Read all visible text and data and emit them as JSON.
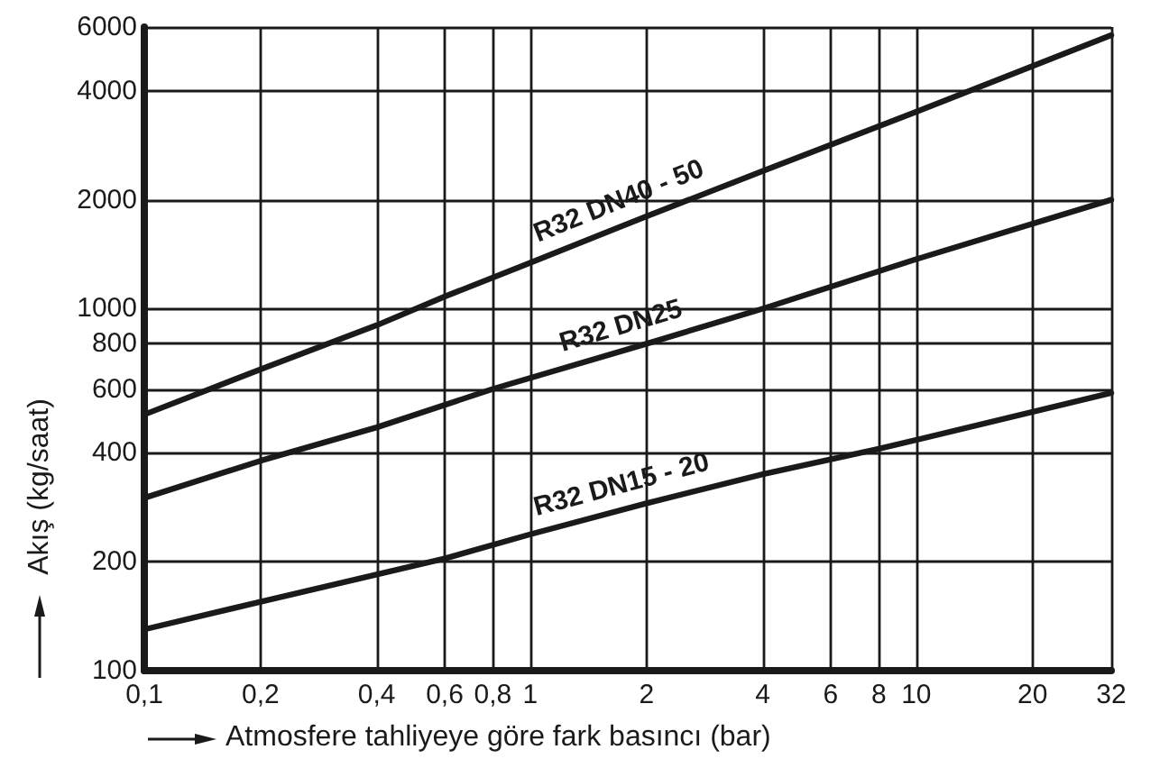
{
  "chart_data": {
    "type": "line",
    "xlabel": "Atmosfere tahliyeye göre fark basıncı (bar)",
    "ylabel": "Akış (kg/saat)",
    "log": "xy",
    "grid": true,
    "legend": false,
    "marker": "none",
    "line_style": "solid",
    "xlim": [
      0.1,
      32
    ],
    "xticks": [
      {
        "value": 0.1,
        "label": "0,1"
      },
      {
        "value": 0.2,
        "label": "0,2"
      },
      {
        "value": 0.4,
        "label": "0,4"
      },
      {
        "value": 0.6,
        "label": "0,6"
      },
      {
        "value": 0.8,
        "label": "0,8"
      },
      1,
      2,
      4,
      6,
      8,
      10,
      20,
      32
    ],
    "ylim": [
      100,
      6000
    ],
    "yticks": [
      100,
      200,
      400,
      600,
      800,
      1000,
      2000,
      4000,
      6000
    ],
    "series": [
      {
        "name": "R32 DN40 - 50",
        "color": "#1a1a1a",
        "x": [
          0.1,
          0.2,
          0.4,
          0.6,
          1,
          2,
          4,
          10,
          32
        ],
        "values": [
          510,
          680,
          900,
          1080,
          1340,
          1800,
          2400,
          3500,
          5700
        ]
      },
      {
        "name": "R32 DN25",
        "color": "#1a1a1a",
        "x": [
          0.1,
          0.2,
          0.4,
          0.8,
          2,
          4,
          10,
          32
        ],
        "values": [
          300,
          380,
          470,
          600,
          800,
          1000,
          1370,
          2000
        ]
      },
      {
        "name": "R32 DN15 - 20",
        "color": "#1a1a1a",
        "x": [
          0.1,
          0.2,
          0.6,
          1,
          2,
          4,
          8,
          32
        ],
        "values": [
          130,
          155,
          204,
          238,
          290,
          349,
          410,
          585
        ]
      }
    ]
  }
}
